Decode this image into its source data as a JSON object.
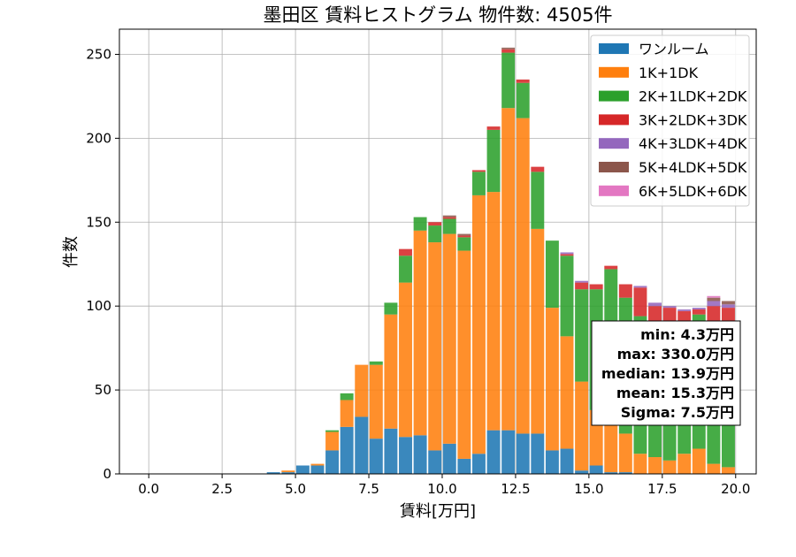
{
  "chart_data": {
    "type": "bar",
    "stacked": true,
    "title": "墨田区 賃料ヒストグラム 物件数: 4505件",
    "xlabel": "賃料[万円]",
    "ylabel": "件数",
    "xlim": [
      -1.0,
      20.7
    ],
    "ylim": [
      0,
      265
    ],
    "grid": true,
    "legend_position": "top-right",
    "x_ticks": [
      0.0,
      2.5,
      5.0,
      7.5,
      10.0,
      12.5,
      15.0,
      17.5,
      20.0
    ],
    "x_tick_labels": [
      "0.0",
      "2.5",
      "5.0",
      "7.5",
      "10.0",
      "12.5",
      "15.0",
      "17.5",
      "20.0"
    ],
    "y_ticks": [
      0,
      50,
      100,
      150,
      200,
      250
    ],
    "y_tick_labels": [
      "0",
      "50",
      "100",
      "150",
      "200",
      "250"
    ],
    "bin_width": 0.5,
    "bins": [
      4.0,
      4.5,
      5.0,
      5.5,
      6.0,
      6.5,
      7.0,
      7.5,
      8.0,
      8.5,
      9.0,
      9.5,
      10.0,
      10.5,
      11.0,
      11.5,
      12.0,
      12.5,
      13.0,
      13.5,
      14.0,
      14.5,
      15.0,
      15.5,
      16.0,
      16.5,
      17.0,
      17.5,
      18.0,
      18.5,
      19.0,
      19.5
    ],
    "series": [
      {
        "name": "ワンルーム",
        "color": "#1f77b4",
        "values": [
          1,
          1,
          5,
          5,
          14,
          28,
          34,
          21,
          27,
          22,
          23,
          14,
          18,
          9,
          12,
          26,
          26,
          24,
          24,
          14,
          15,
          2,
          5,
          1,
          1,
          0,
          0,
          0,
          0,
          0,
          0,
          0
        ]
      },
      {
        "name": "1K+1DK",
        "color": "#ff7f0e",
        "values": [
          0,
          1,
          0,
          1,
          11,
          16,
          31,
          44,
          68,
          92,
          122,
          124,
          125,
          124,
          154,
          142,
          192,
          188,
          122,
          85,
          67,
          53,
          33,
          38,
          23,
          12,
          10,
          8,
          12,
          15,
          6,
          4
        ]
      },
      {
        "name": "2K+1LDK+2DK",
        "color": "#2ca02c",
        "values": [
          0,
          0,
          0,
          0,
          1,
          4,
          0,
          2,
          7,
          16,
          8,
          10,
          9,
          8,
          14,
          37,
          33,
          21,
          34,
          40,
          48,
          55,
          72,
          83,
          81,
          82,
          80,
          80,
          74,
          80,
          83,
          84
        ]
      },
      {
        "name": "3K+2LDK+3DK",
        "color": "#d62728",
        "values": [
          0,
          0,
          0,
          0,
          0,
          0,
          0,
          0,
          0,
          4,
          0,
          2,
          1,
          1,
          1,
          2,
          2,
          2,
          3,
          0,
          1,
          4,
          3,
          2,
          8,
          17,
          10,
          11,
          11,
          3,
          11,
          11
        ]
      },
      {
        "name": "4K+3LDK+4DK",
        "color": "#9467bd",
        "values": [
          0,
          0,
          0,
          0,
          0,
          0,
          0,
          0,
          0,
          0,
          0,
          0,
          0,
          0,
          0,
          0,
          0,
          0,
          0,
          0,
          1,
          1,
          0,
          0,
          0,
          1,
          2,
          1,
          1,
          1,
          3,
          2
        ]
      },
      {
        "name": "5K+4LDK+5DK",
        "color": "#8c564b",
        "values": [
          0,
          0,
          0,
          0,
          0,
          0,
          0,
          0,
          0,
          0,
          0,
          0,
          1,
          1,
          0,
          0,
          1,
          0,
          0,
          0,
          0,
          0,
          0,
          0,
          0,
          0,
          0,
          0,
          0,
          0,
          2,
          2
        ]
      },
      {
        "name": "6K+5LDK+6DK",
        "color": "#e377c2",
        "values": [
          0,
          0,
          0,
          0,
          0,
          0,
          0,
          0,
          0,
          0,
          0,
          0,
          0,
          0,
          0,
          0,
          0,
          0,
          0,
          0,
          0,
          0,
          0,
          0,
          0,
          0,
          0,
          0,
          0,
          0,
          1,
          0
        ]
      }
    ],
    "annotation_lines": [
      "min: 4.3万円",
      "max: 330.0万円",
      "median: 13.9万円",
      "mean: 15.3万円",
      "Sigma: 7.5万円"
    ]
  }
}
